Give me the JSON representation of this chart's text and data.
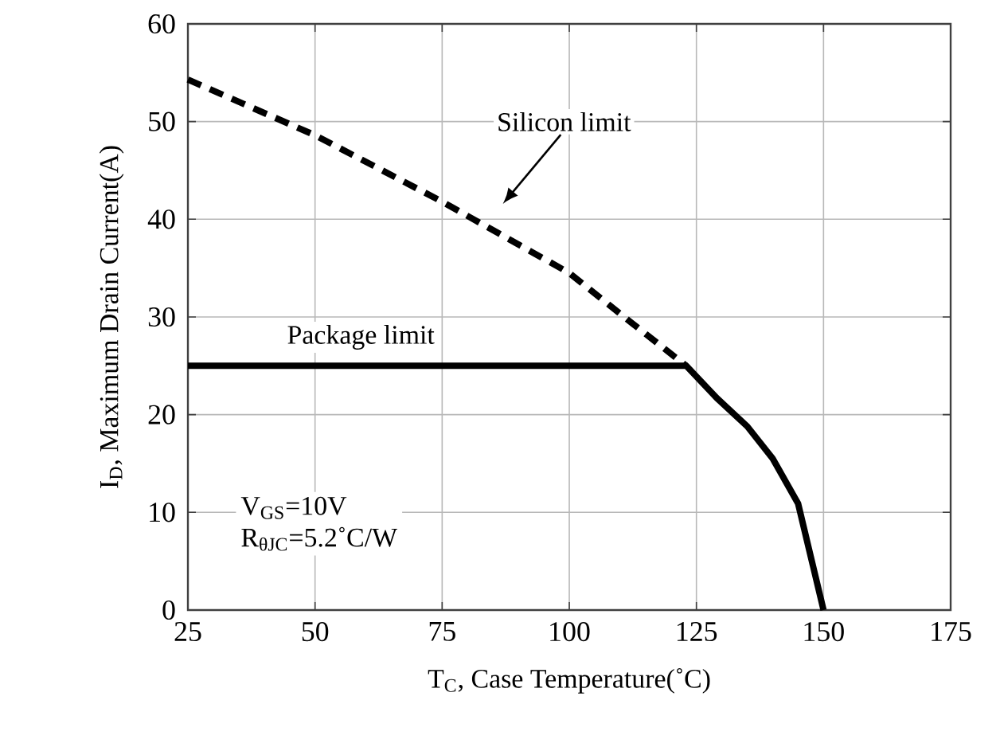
{
  "chart_data": {
    "type": "line",
    "xlabel": "T$_{C}$, Case Temperature(˚C)",
    "ylabel": "I$_{D}$, Maximum Drain Current(A)",
    "xlim": [
      25,
      175
    ],
    "ylim": [
      0,
      60
    ],
    "xticks": [
      25,
      50,
      75,
      100,
      125,
      150,
      175
    ],
    "yticks": [
      0,
      10,
      20,
      30,
      40,
      50,
      60
    ],
    "grid": true,
    "marker": "none",
    "series": [
      {
        "color": "#000000",
        "line_style": "dashed",
        "x": [
          25,
          50,
          75,
          100,
          112.5,
          123
        ],
        "values": [
          54.3,
          48.6,
          41.8,
          34.5,
          29.3,
          25
        ]
      },
      {
        "color": "#000000",
        "line_style": "solid",
        "x": [
          25,
          123,
          129,
          135,
          140,
          145,
          150
        ],
        "values": [
          25,
          25,
          21.7,
          18.8,
          15.5,
          10.9,
          0
        ]
      }
    ],
    "annotations": [
      "Silicon limit",
      {
        "text": "Package limit",
        "x": 59,
        "y": 25
      },
      "V$_{GS}$=10V",
      "R$_{θJC}$=5.2˚C/W"
    ]
  }
}
